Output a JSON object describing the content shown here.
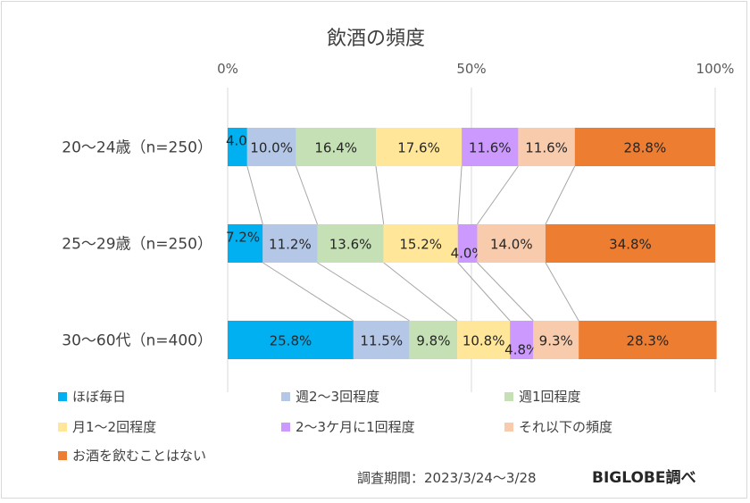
{
  "chart_data": {
    "type": "bar",
    "stacked": "percent",
    "orientation": "horizontal",
    "title": "飲酒の頻度",
    "categories": [
      "20～24歳（n=250）",
      "25～29歳（n=250）",
      "30～60代（n=400）"
    ],
    "xlim": [
      0,
      100
    ],
    "x_ticks": [
      "0%",
      "50%",
      "100%"
    ],
    "grid": true,
    "legend_position": "bottom",
    "series": [
      {
        "name": "ほぼ毎日",
        "color": "#00b0f0",
        "values": [
          4.0,
          7.2,
          25.8
        ],
        "labels": [
          "4.0%",
          "7.2%",
          "25.8%"
        ]
      },
      {
        "name": "週2～3回程度",
        "color": "#b4c7e7",
        "values": [
          10.0,
          11.2,
          11.5
        ],
        "labels": [
          "10.0%",
          "11.2%",
          "11.5%"
        ]
      },
      {
        "name": "週1回程度",
        "color": "#c5e0b4",
        "values": [
          16.4,
          13.6,
          9.8
        ],
        "labels": [
          "16.4%",
          "13.6%",
          "9.8%"
        ]
      },
      {
        "name": "月1～2回程度",
        "color": "#ffe699",
        "values": [
          17.6,
          15.2,
          10.8
        ],
        "labels": [
          "17.6%",
          "15.2%",
          "10.8%"
        ]
      },
      {
        "name": "2～3ケ月に1回程度",
        "color": "#cc99ff",
        "values": [
          11.6,
          4.0,
          4.8
        ],
        "labels": [
          "11.6%",
          "4.0%",
          "4.8%"
        ]
      },
      {
        "name": "それ以下の頻度",
        "color": "#f8cbad",
        "values": [
          11.6,
          14.0,
          9.3
        ],
        "labels": [
          "11.6%",
          "14.0%",
          "9.3%"
        ]
      },
      {
        "name": "お酒を飲むことはない",
        "color": "#ed7d31",
        "values": [
          28.8,
          34.8,
          28.3
        ],
        "labels": [
          "28.8%",
          "34.8%",
          "28.3%"
        ]
      }
    ]
  },
  "footer": {
    "survey_period": "調査期間：2023/3/24～3/28",
    "source": "BIGLOBE調べ"
  }
}
